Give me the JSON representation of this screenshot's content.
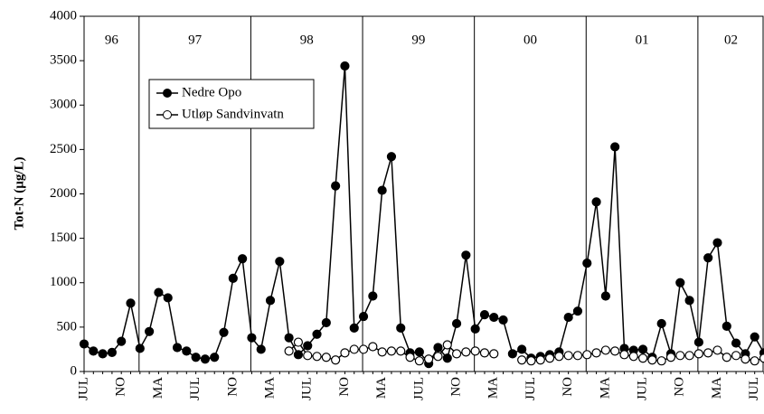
{
  "chart_data": {
    "type": "line",
    "y_label": "Tot-N (µg/L)",
    "categories": [
      "JUL",
      null,
      null,
      null,
      "NO",
      null,
      null,
      null,
      "MA",
      null,
      null,
      null,
      "JUL",
      null,
      null,
      null,
      "NO",
      null,
      null,
      null,
      "MA",
      null,
      null,
      null,
      "JUL",
      null,
      null,
      null,
      "NO",
      null,
      null,
      null,
      "MA",
      null,
      null,
      null,
      "JUL",
      null,
      null,
      null,
      "NO",
      null,
      null,
      null,
      "MA",
      null,
      null,
      null,
      "JUL",
      null,
      null,
      null,
      "NO",
      null,
      null,
      null,
      "MA",
      null,
      null,
      null,
      "JUL",
      null,
      null,
      null,
      "NO",
      null,
      null,
      null,
      "MA",
      null,
      null,
      null,
      "JUL",
      null
    ],
    "periods": [
      {
        "label": "96",
        "start": 0
      },
      {
        "label": "97",
        "start": 6
      },
      {
        "label": "98",
        "start": 18
      },
      {
        "label": "99",
        "start": 30
      },
      {
        "label": "00",
        "start": 42
      },
      {
        "label": "01",
        "start": 54
      },
      {
        "label": "02",
        "start": 66
      }
    ],
    "series": [
      {
        "name": "Nedre Opo",
        "color": "#000000",
        "marker": "filled",
        "values": [
          310,
          230,
          200,
          215,
          340,
          770,
          260,
          450,
          890,
          830,
          270,
          230,
          160,
          140,
          160,
          440,
          1050,
          1270,
          380,
          250,
          800,
          1240,
          380,
          190,
          290,
          420,
          550,
          2090,
          3440,
          490,
          620,
          850,
          2040,
          2420,
          490,
          210,
          220,
          90,
          270,
          150,
          540,
          1310,
          480,
          640,
          610,
          580,
          200,
          250,
          150,
          170,
          190,
          220,
          610,
          680,
          1220,
          1910,
          850,
          2530,
          260,
          240,
          250,
          160,
          540,
          200,
          1000,
          800,
          330,
          1280,
          1450,
          510,
          320,
          200,
          390,
          210
        ]
      },
      {
        "name": "Utløp Sandvinvatn",
        "color": "#000000",
        "marker": "open",
        "values": [
          null,
          null,
          null,
          null,
          null,
          null,
          null,
          null,
          null,
          null,
          null,
          null,
          null,
          null,
          null,
          null,
          null,
          null,
          null,
          null,
          null,
          null,
          230,
          330,
          180,
          170,
          160,
          130,
          210,
          250,
          250,
          280,
          220,
          230,
          230,
          160,
          120,
          140,
          170,
          300,
          200,
          220,
          230,
          210,
          200,
          null,
          null,
          130,
          120,
          130,
          150,
          170,
          180,
          180,
          190,
          210,
          240,
          230,
          190,
          170,
          150,
          130,
          120,
          160,
          180,
          180,
          200,
          210,
          240,
          160,
          180,
          140,
          120,
          150
        ]
      }
    ],
    "ylim": [
      0,
      4000
    ],
    "yticks": [
      0,
      500,
      1000,
      1500,
      2000,
      2500,
      3000,
      3500,
      4000
    ],
    "legend": "upper-left",
    "grid": false
  }
}
